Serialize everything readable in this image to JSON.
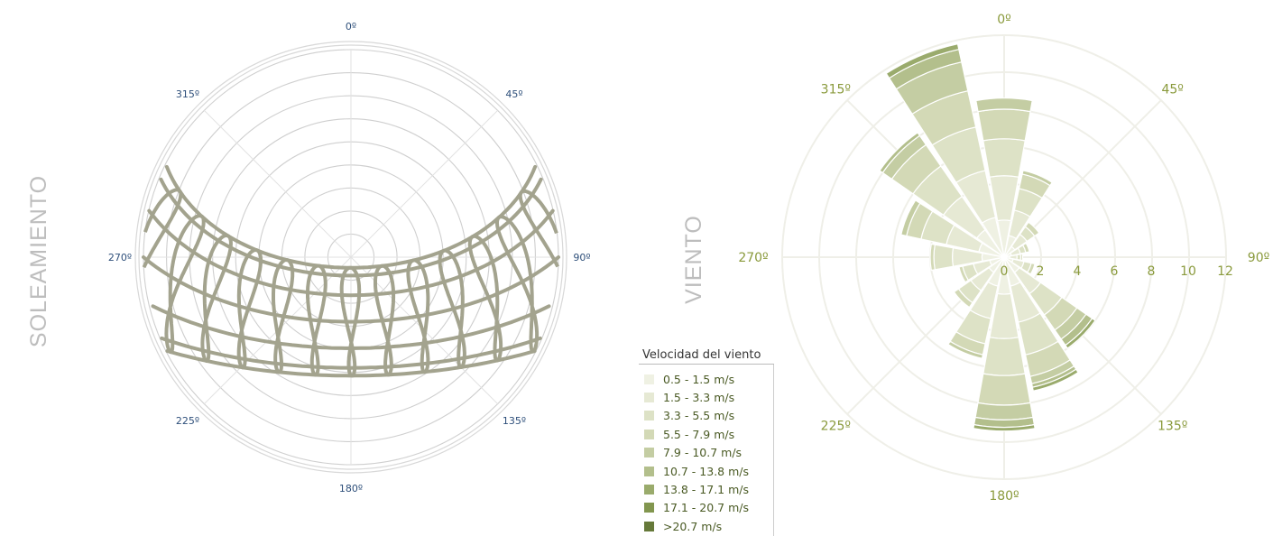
{
  "labels": {
    "sun_side": "SOLEAMIENTO",
    "wind_side": "VIENTO"
  },
  "sun_chart": {
    "type": "polar_sunpath",
    "angle_labels": [
      "0º",
      "45º",
      "90º",
      "135º",
      "180º",
      "225º",
      "270º",
      "315º"
    ],
    "angles": [
      0,
      45,
      90,
      135,
      180,
      225,
      270,
      315
    ],
    "label_color": "#2e4f7a",
    "path_color": "#a3a38e",
    "grid_color": "#cfcfcf"
  },
  "chart_data": {
    "type": "polar_bar",
    "subtype": "wind_rose",
    "angle_labels": [
      "0º",
      "45º",
      "90º",
      "135º",
      "180º",
      "225º",
      "270º",
      "315º"
    ],
    "radial_ticks": [
      "0",
      "2",
      "4",
      "6",
      "8",
      "10",
      "12"
    ],
    "radial_range": [
      0,
      12
    ],
    "directions_deg": [
      0,
      22.5,
      45,
      67.5,
      90,
      112.5,
      135,
      157.5,
      180,
      202.5,
      225,
      247.5,
      270,
      292.5,
      315,
      337.5
    ],
    "legend_title": "Velocidad del viento",
    "legend_placement": "bottom-left",
    "series": [
      {
        "name": "0.5 - 1.5 m/s",
        "color": "#eff1e3",
        "values": [
          2.0,
          1.2,
          0.7,
          0.4,
          0.3,
          0.5,
          1.0,
          1.6,
          2.0,
          1.6,
          1.0,
          0.8,
          1.2,
          1.4,
          1.8,
          2.2
        ]
      },
      {
        "name": "1.5 - 3.3 m/s",
        "color": "#e6e9d4",
        "values": [
          2.4,
          1.4,
          0.8,
          0.5,
          0.4,
          0.6,
          1.4,
          2.0,
          2.4,
          1.8,
          1.2,
          0.9,
          1.6,
          1.8,
          2.2,
          2.6
        ]
      },
      {
        "name": "3.3 - 5.5 m/s",
        "color": "#dde2c6",
        "values": [
          2.0,
          1.2,
          0.5,
          0.3,
          0.2,
          0.4,
          1.4,
          1.8,
          2.0,
          1.4,
          0.8,
          0.6,
          1.0,
          1.4,
          2.0,
          2.4
        ]
      },
      {
        "name": "5.5 - 7.9 m/s",
        "color": "#d3d9b6",
        "values": [
          1.6,
          0.8,
          0.3,
          0.2,
          0.1,
          0.2,
          1.0,
          1.2,
          1.6,
          0.6,
          0.3,
          0.2,
          0.2,
          0.8,
          1.4,
          2.0
        ]
      },
      {
        "name": "7.9 - 10.7 m/s",
        "color": "#c4cda3",
        "values": [
          0.6,
          0.2,
          0.0,
          0.0,
          0.0,
          0.0,
          0.6,
          0.4,
          0.8,
          0.2,
          0.0,
          0.0,
          0.0,
          0.3,
          0.6,
          1.6
        ]
      },
      {
        "name": "10.7 - 13.8 m/s",
        "color": "#b3bf8c",
        "values": [
          0.0,
          0.0,
          0.0,
          0.0,
          0.0,
          0.0,
          0.4,
          0.2,
          0.4,
          0.0,
          0.0,
          0.0,
          0.0,
          0.0,
          0.2,
          0.7
        ]
      },
      {
        "name": "13.8 - 17.1 m/s",
        "color": "#9aab6c",
        "values": [
          0.0,
          0.0,
          0.0,
          0.0,
          0.0,
          0.0,
          0.2,
          0.2,
          0.2,
          0.0,
          0.0,
          0.0,
          0.0,
          0.0,
          0.0,
          0.3
        ]
      },
      {
        "name": "17.1 - 20.7 m/s",
        "color": "#82964f",
        "values": [
          0,
          0,
          0,
          0,
          0,
          0,
          0,
          0,
          0,
          0,
          0,
          0,
          0,
          0,
          0,
          0
        ]
      },
      {
        "name": ">20.7 m/s",
        "color": "#66793a",
        "values": [
          0,
          0,
          0,
          0,
          0,
          0,
          0,
          0,
          0,
          0,
          0,
          0,
          0,
          0,
          0,
          0
        ]
      }
    ],
    "label_color": "#8a9a3c",
    "grid_color": "#efefe8"
  }
}
